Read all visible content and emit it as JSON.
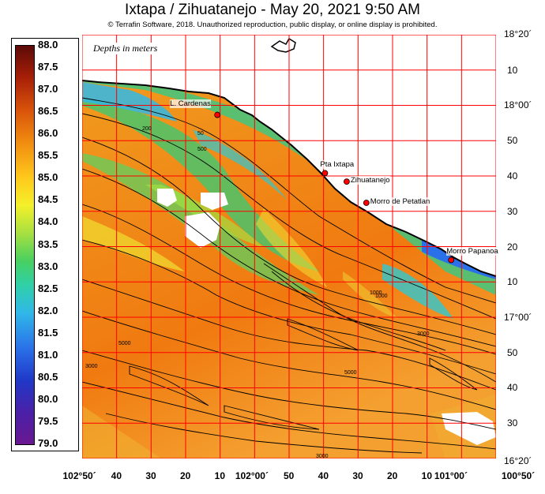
{
  "title": "Ixtapa / Zihuatanejo - May 20, 2021 9:50 AM",
  "copyright": "© Terrafin Software,  2018.  Unauthorized reproduction, public display, or online display is prohibited.",
  "depth_note": "Depths in meters",
  "legend": {
    "units": "",
    "values": [
      "88.0",
      "87.5",
      "87.0",
      "86.5",
      "86.0",
      "85.5",
      "85.0",
      "84.5",
      "84.0",
      "83.5",
      "83.0",
      "82.5",
      "82.0",
      "81.5",
      "81.0",
      "80.5",
      "80.0",
      "79.5",
      "79.0"
    ]
  },
  "lat_labels": [
    {
      "text": "18°20´",
      "lat": 18.333
    },
    {
      "text": "10",
      "lat": 18.1667
    },
    {
      "text": "18°00´",
      "lat": 18.0
    },
    {
      "text": "50",
      "lat": 17.8333
    },
    {
      "text": "40",
      "lat": 17.6667
    },
    {
      "text": "30",
      "lat": 17.5
    },
    {
      "text": "20",
      "lat": 17.3333
    },
    {
      "text": "10",
      "lat": 17.1667
    },
    {
      "text": "17°00´",
      "lat": 17.0
    },
    {
      "text": "50",
      "lat": 16.8333
    },
    {
      "text": "40",
      "lat": 16.6667
    },
    {
      "text": "30",
      "lat": 16.5
    },
    {
      "text": "16°20´",
      "lat": 16.3333
    }
  ],
  "lon_labels": [
    {
      "text": "102°50´",
      "lon": -102.8333
    },
    {
      "text": "40",
      "lon": -102.6667
    },
    {
      "text": "30",
      "lon": -102.5
    },
    {
      "text": "20",
      "lon": -102.3333
    },
    {
      "text": "10",
      "lon": -102.1667
    },
    {
      "text": "102°00´",
      "lon": -102.0
    },
    {
      "text": "50",
      "lon": -101.8333
    },
    {
      "text": "40",
      "lon": -101.6667
    },
    {
      "text": "30",
      "lon": -101.5
    },
    {
      "text": "20",
      "lon": -101.3333
    },
    {
      "text": "10",
      "lon": -101.1667
    },
    {
      "text": "101°00´",
      "lon": -101.0
    },
    {
      "text": "100°50´",
      "lon": -100.8333
    }
  ],
  "places": [
    {
      "name": "L. Cardenas",
      "lat": 17.955,
      "lon": -102.18
    },
    {
      "name": "Pta Ixtapa",
      "lat": 17.68,
      "lon": -101.66
    },
    {
      "name": "Zihuatanejo",
      "lat": 17.64,
      "lon": -101.555
    },
    {
      "name": "Morro de Petatlan",
      "lat": 17.54,
      "lon": -101.46
    },
    {
      "name": "Morro Papanoa",
      "lat": 17.27,
      "lon": -101.05
    }
  ],
  "contour_labels": [
    "50",
    "200",
    "500",
    "1000",
    "3000",
    "5000",
    "3000",
    "5000",
    "3000",
    "1000"
  ],
  "colors": {
    "grid": "#ff0000",
    "land": "#ffffff",
    "place_marker": "#ff0000"
  }
}
